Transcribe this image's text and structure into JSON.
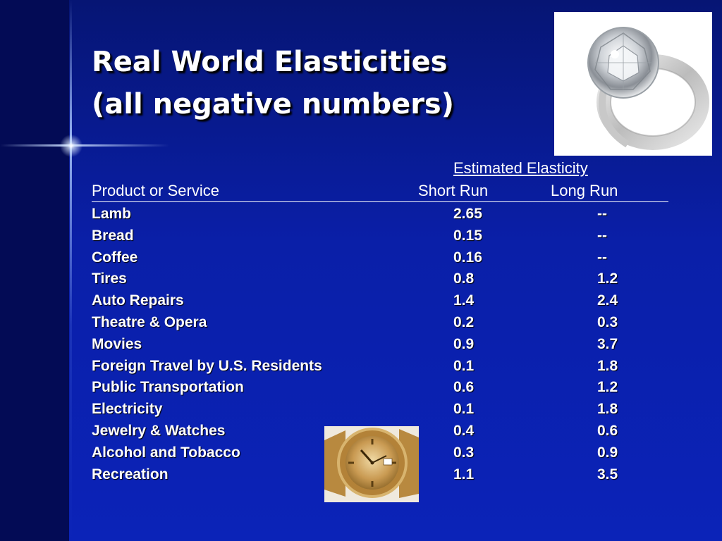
{
  "slide": {
    "title_line1": "Real World Elasticities",
    "title_line2": "(all negative numbers)"
  },
  "table": {
    "group_header": "Estimated Elasticity",
    "col_product": "Product or Service",
    "col_short": "Short Run",
    "col_long": "Long Run",
    "rows": [
      {
        "product": "Lamb",
        "short": "2.65",
        "long": "--"
      },
      {
        "product": "Bread",
        "short": "0.15",
        "long": "--"
      },
      {
        "product": "Coffee",
        "short": "0.16",
        "long": "--"
      },
      {
        "product": "Tires",
        "short": "0.8",
        "long": "1.2"
      },
      {
        "product": "Auto Repairs",
        "short": "1.4",
        "long": "2.4"
      },
      {
        "product": "Theatre & Opera",
        "short": "0.2",
        "long": "0.3"
      },
      {
        "product": "Movies",
        "short": "0.9",
        "long": "3.7"
      },
      {
        "product": "Foreign Travel by U.S. Residents",
        "short": "0.1",
        "long": "1.8"
      },
      {
        "product": "Public Transportation",
        "short": "0.6",
        "long": "1.2"
      },
      {
        "product": "Electricity",
        "short": "0.1",
        "long": "1.8"
      },
      {
        "product": "Jewelry & Watches",
        "short": "0.4",
        "long": "0.6"
      },
      {
        "product": "Alcohol and Tobacco",
        "short": "0.3",
        "long": "0.9"
      },
      {
        "product": "Recreation",
        "short": "1.1",
        "long": "3.5"
      }
    ]
  },
  "images": {
    "ring": "diamond-ring-icon",
    "watch": "gold-watch-icon"
  },
  "colors": {
    "background": "#0a1a9a",
    "text": "#ffffff"
  }
}
